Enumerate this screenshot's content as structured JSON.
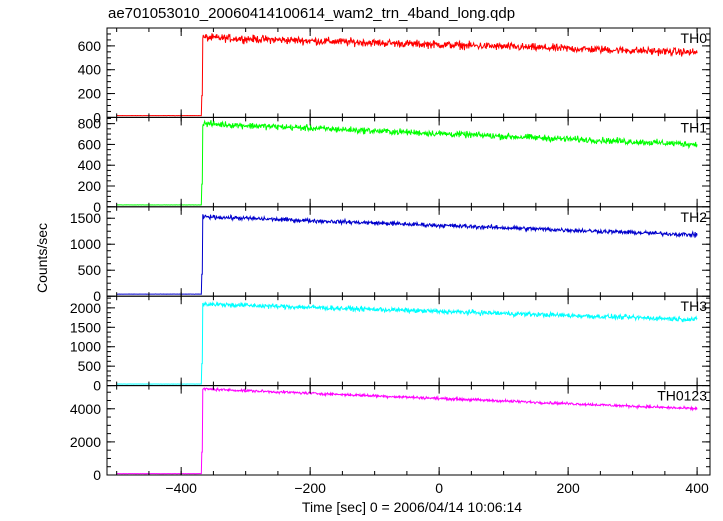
{
  "title": "ae701053010_20060414100614_wam2_trn_4band_long.qdp",
  "xlabel": "Time [sec] 0 = 2006/04/14 10:06:14",
  "ylabel": "Counts/sec",
  "chart_data": {
    "type": "line",
    "title": "ae701053010_20060414100614_wam2_trn_4band_long.qdp",
    "xlabel": "Time [sec] 0 = 2006/04/14 10:06:14",
    "ylabel": "Counts/sec",
    "xlim": [
      -515,
      420
    ],
    "x_ticks": [
      -400,
      -200,
      0,
      200,
      400
    ],
    "x_tick_labels": [
      "−400",
      "−200",
      "0",
      "200",
      "400"
    ],
    "trigger_time": -367,
    "data_start": -500,
    "data_end": 400,
    "panels": [
      {
        "name": "TH0",
        "color": "#ff0000",
        "ylim": [
          0,
          750
        ],
        "yticks": [
          0,
          200,
          400,
          600
        ],
        "pre_level": 15,
        "post_start": 670,
        "post_end": 545,
        "noise": 32
      },
      {
        "name": "TH1",
        "color": "#00ff00",
        "ylim": [
          0,
          860
        ],
        "yticks": [
          0,
          200,
          400,
          600,
          800
        ],
        "pre_level": 18,
        "post_start": 800,
        "post_end": 600,
        "noise": 30
      },
      {
        "name": "TH2",
        "color": "#0000cc",
        "ylim": [
          0,
          1720
        ],
        "yticks": [
          0,
          500,
          1000,
          1500
        ],
        "pre_level": 40,
        "post_start": 1530,
        "post_end": 1180,
        "noise": 40
      },
      {
        "name": "TH3",
        "color": "#00ffff",
        "ylim": [
          0,
          2300
        ],
        "yticks": [
          0,
          500,
          1000,
          1500,
          2000
        ],
        "pre_level": 40,
        "post_start": 2100,
        "post_end": 1700,
        "noise": 60
      },
      {
        "name": "TH0123",
        "color": "#ff00ff",
        "ylim": [
          0,
          5400
        ],
        "yticks": [
          0,
          2000,
          4000
        ],
        "pre_level": 80,
        "post_start": 5200,
        "post_end": 4000,
        "noise": 80
      }
    ]
  }
}
